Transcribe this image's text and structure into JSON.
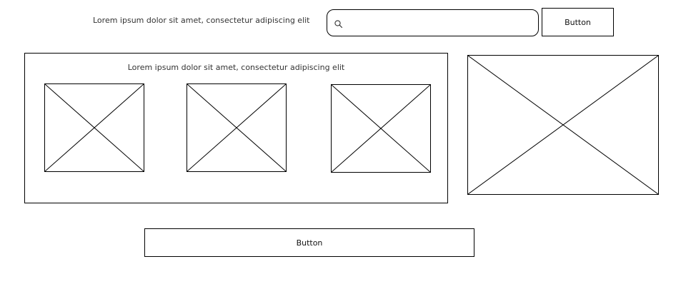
{
  "header": {
    "text": "Lorem ipsum dolor sit amet, consectetur adipiscing elit"
  },
  "search": {
    "placeholder": "",
    "value": "",
    "icon": "search-icon"
  },
  "top_button": {
    "label": "Button"
  },
  "panel": {
    "title": "Lorem ipsum dolor sit amet, consectetur adipiscing elit",
    "images": [
      {
        "icon": "image-placeholder-icon"
      },
      {
        "icon": "image-placeholder-icon"
      },
      {
        "icon": "image-placeholder-icon"
      }
    ]
  },
  "side_image": {
    "icon": "image-placeholder-icon"
  },
  "bottom_button": {
    "label": "Button"
  },
  "colors": {
    "stroke": "#000000",
    "background": "#ffffff",
    "text": "#333333"
  }
}
